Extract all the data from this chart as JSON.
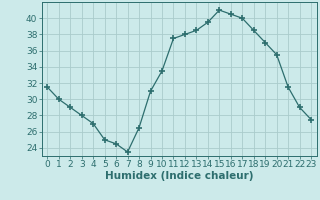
{
  "x": [
    0,
    1,
    2,
    3,
    4,
    5,
    6,
    7,
    8,
    9,
    10,
    11,
    12,
    13,
    14,
    15,
    16,
    17,
    18,
    19,
    20,
    21,
    22,
    23
  ],
  "y": [
    31.5,
    30,
    29,
    28,
    27,
    25,
    24.5,
    23.5,
    26.5,
    31,
    33.5,
    37.5,
    38,
    38.5,
    39.5,
    41,
    40.5,
    40,
    38.5,
    37,
    35.5,
    31.5,
    29,
    27.5
  ],
  "line_color": "#2d6e6e",
  "marker": "+",
  "marker_size": 4,
  "background_color": "#cceaea",
  "grid_color": "#aacccc",
  "xlabel": "Humidex (Indice chaleur)",
  "ylim": [
    23,
    42
  ],
  "xlim": [
    -0.5,
    23.5
  ],
  "yticks": [
    24,
    26,
    28,
    30,
    32,
    34,
    36,
    38,
    40
  ],
  "xticks": [
    0,
    1,
    2,
    3,
    4,
    5,
    6,
    7,
    8,
    9,
    10,
    11,
    12,
    13,
    14,
    15,
    16,
    17,
    18,
    19,
    20,
    21,
    22,
    23
  ],
  "tick_color": "#2d6e6e",
  "label_fontsize": 6.5,
  "axis_fontsize": 7.5
}
